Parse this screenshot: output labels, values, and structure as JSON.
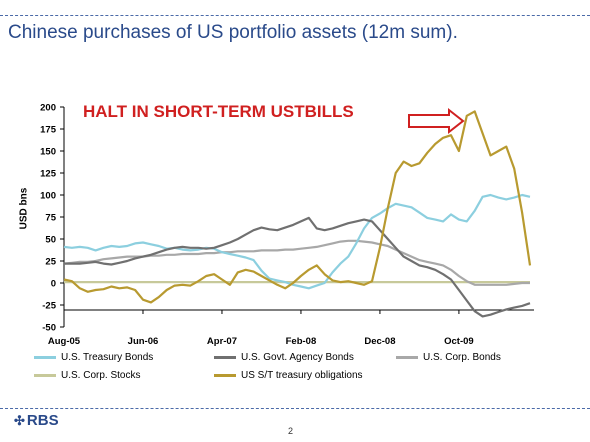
{
  "slide": {
    "title": "Chinese purchases of US portfolio assets (12m sum).",
    "page_number": "2",
    "logo_text": "RBS"
  },
  "chart_data": {
    "type": "line",
    "annotation": "HALT IN SHORT-TERM USTBILLS",
    "ylabel": "USD bns",
    "ylim": [
      -50,
      200
    ],
    "yticks": [
      -50,
      -25,
      0,
      25,
      50,
      75,
      100,
      125,
      150,
      175,
      200
    ],
    "xlim": [
      "2005-08",
      "2009-10"
    ],
    "xticks": [
      "Aug-05",
      "Jun-06",
      "Apr-07",
      "Feb-08",
      "Dec-08",
      "Oct-09"
    ],
    "xtick_positions": [
      0,
      10,
      20,
      30,
      40,
      50
    ],
    "x_start": "Aug-05",
    "legend_position": "bottom",
    "series": [
      {
        "name": "U.S. Treasury Bonds",
        "color": "#8ccfdf",
        "values": [
          41,
          40,
          41,
          40,
          37,
          40,
          42,
          41,
          42,
          45,
          46,
          44,
          42,
          39,
          40,
          38,
          37,
          38,
          40,
          39,
          35,
          33,
          31,
          29,
          26,
          14,
          5,
          3,
          1,
          -2,
          -4,
          -6,
          -3,
          0,
          12,
          22,
          30,
          45,
          62,
          74,
          79,
          85,
          90,
          88,
          86,
          80,
          74,
          72,
          70,
          78,
          72,
          70,
          82,
          98,
          100,
          97,
          95,
          97,
          100,
          98
        ]
      },
      {
        "name": "U.S. Govt. Agency Bonds",
        "color": "#707070",
        "values": [
          22,
          22,
          22,
          23,
          24,
          22,
          21,
          23,
          25,
          28,
          30,
          32,
          35,
          38,
          40,
          41,
          40,
          40,
          39,
          40,
          43,
          46,
          50,
          55,
          60,
          63,
          61,
          60,
          63,
          66,
          70,
          74,
          62,
          60,
          62,
          65,
          68,
          70,
          72,
          70,
          60,
          50,
          40,
          30,
          25,
          20,
          18,
          15,
          10,
          4,
          -8,
          -20,
          -32,
          -38,
          -36,
          -33,
          -30,
          -28,
          -26,
          -23
        ]
      },
      {
        "name": "U.S. Corp. Bonds",
        "color": "#a8a8a8",
        "values": [
          22,
          23,
          24,
          24,
          25,
          27,
          28,
          29,
          30,
          30,
          30,
          31,
          31,
          32,
          32,
          33,
          33,
          33,
          34,
          34,
          35,
          35,
          36,
          36,
          36,
          37,
          37,
          37,
          38,
          38,
          39,
          40,
          41,
          43,
          45,
          47,
          48,
          48,
          47,
          46,
          44,
          42,
          38,
          34,
          30,
          26,
          24,
          22,
          20,
          15,
          8,
          2,
          -2,
          -2,
          -2,
          -2,
          -2,
          -1,
          0,
          0
        ]
      },
      {
        "name": "U.S. Corp. Stocks",
        "color": "#c7c99a",
        "values": [
          1,
          1,
          1,
          1,
          1,
          1,
          1,
          1,
          1,
          1,
          1,
          1,
          1,
          1,
          1,
          1,
          1,
          1,
          1,
          1,
          1,
          1,
          1,
          1,
          1,
          1,
          1,
          1,
          1,
          1,
          1,
          1,
          1,
          1,
          1,
          1,
          1,
          1,
          1,
          1,
          1,
          1,
          1,
          1,
          1,
          1,
          1,
          1,
          1,
          1,
          1,
          1,
          1,
          1,
          1,
          1,
          1,
          1,
          1,
          1
        ]
      },
      {
        "name": "US S/T treasury obligations",
        "color": "#b89a30",
        "values": [
          4,
          2,
          -6,
          -10,
          -8,
          -7,
          -4,
          -6,
          -5,
          -8,
          -19,
          -22,
          -16,
          -8,
          -3,
          -2,
          -3,
          2,
          8,
          10,
          4,
          -2,
          12,
          15,
          13,
          8,
          3,
          -2,
          -6,
          0,
          8,
          15,
          20,
          10,
          3,
          1,
          2,
          0,
          -2,
          2,
          40,
          85,
          125,
          138,
          133,
          136,
          148,
          158,
          165,
          168,
          150,
          190,
          195,
          170,
          145,
          150,
          155,
          130,
          80,
          20
        ]
      }
    ]
  }
}
